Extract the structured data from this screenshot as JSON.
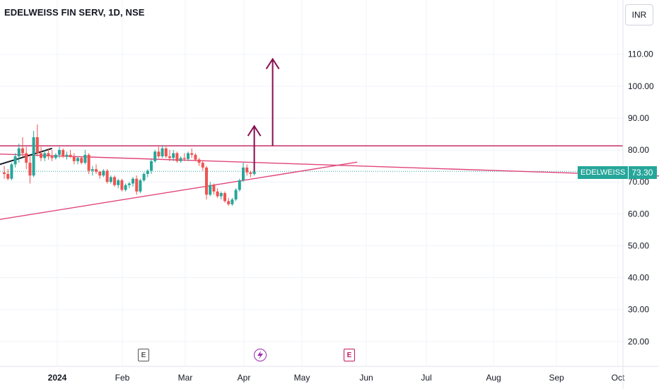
{
  "header": {
    "symbol_title": "EDELWEISS FIN SERV, 1D, NSE",
    "currency": "INR"
  },
  "price_tag": {
    "symbol": "EDELWEISS",
    "value": "73.30"
  },
  "events": {
    "earnings_label": "E",
    "split_icon": "lightning-icon"
  },
  "colors": {
    "up": "#26a69a",
    "down": "#ef5350",
    "trendline": "#e0457b",
    "resistance": "#c2185b",
    "arrow": "#880e4f",
    "last_price_line": "#26a69a"
  },
  "chart_data": {
    "type": "candlestick",
    "title": "EDELWEISS FIN SERV, 1D, NSE",
    "ylim": [
      15,
      122
    ],
    "yticks": [
      20,
      30,
      40,
      50,
      60,
      70,
      80,
      90,
      100,
      110
    ],
    "ytick_labels": [
      "20.00",
      "30.00",
      "40.00",
      "50.00",
      "60.00",
      "70.00",
      "80.00",
      "90.00",
      "100.00",
      "110.00"
    ],
    "x_labels": [
      "2024",
      "Feb",
      "Mar",
      "Apr",
      "May",
      "Jun",
      "Jul",
      "Aug",
      "Sep",
      "Oct"
    ],
    "last_price": 73.3,
    "candles": [
      {
        "o": 73,
        "h": 75,
        "l": 71,
        "c": 72.5
      },
      {
        "o": 72.5,
        "h": 74,
        "l": 70.5,
        "c": 71
      },
      {
        "o": 71,
        "h": 76,
        "l": 70.5,
        "c": 75.5
      },
      {
        "o": 75.5,
        "h": 79,
        "l": 74.5,
        "c": 78
      },
      {
        "o": 78,
        "h": 82,
        "l": 76,
        "c": 80.5
      },
      {
        "o": 80.5,
        "h": 84,
        "l": 78,
        "c": 79
      },
      {
        "o": 79,
        "h": 81,
        "l": 74,
        "c": 76
      },
      {
        "o": 76,
        "h": 78,
        "l": 69.5,
        "c": 72
      },
      {
        "o": 72,
        "h": 86,
        "l": 71.5,
        "c": 84
      },
      {
        "o": 84,
        "h": 88,
        "l": 78,
        "c": 79
      },
      {
        "o": 79,
        "h": 81,
        "l": 76.5,
        "c": 77.5
      },
      {
        "o": 77.5,
        "h": 80,
        "l": 76.5,
        "c": 79
      },
      {
        "o": 79,
        "h": 80.5,
        "l": 77,
        "c": 78
      },
      {
        "o": 78,
        "h": 80,
        "l": 76.5,
        "c": 77.5
      },
      {
        "o": 77.5,
        "h": 79,
        "l": 77,
        "c": 78.5
      },
      {
        "o": 78.5,
        "h": 81,
        "l": 77.5,
        "c": 80
      },
      {
        "o": 80,
        "h": 80.5,
        "l": 77.5,
        "c": 78
      },
      {
        "o": 78,
        "h": 79.5,
        "l": 77,
        "c": 78.5
      },
      {
        "o": 78.5,
        "h": 80,
        "l": 77.5,
        "c": 77.8
      },
      {
        "o": 77.8,
        "h": 79,
        "l": 75.5,
        "c": 76.5
      },
      {
        "o": 76.5,
        "h": 78,
        "l": 75.5,
        "c": 77.5
      },
      {
        "o": 77.5,
        "h": 78,
        "l": 75.5,
        "c": 76
      },
      {
        "o": 76,
        "h": 80,
        "l": 75.5,
        "c": 78.5
      },
      {
        "o": 78.5,
        "h": 79,
        "l": 72.5,
        "c": 73.5
      },
      {
        "o": 73.5,
        "h": 75,
        "l": 72,
        "c": 74
      },
      {
        "o": 74,
        "h": 75.5,
        "l": 72.5,
        "c": 73.2
      },
      {
        "o": 73.2,
        "h": 73.5,
        "l": 71,
        "c": 72
      },
      {
        "o": 72,
        "h": 74,
        "l": 71.5,
        "c": 73.5
      },
      {
        "o": 73.5,
        "h": 74,
        "l": 69.5,
        "c": 70
      },
      {
        "o": 70,
        "h": 72,
        "l": 69.5,
        "c": 71.5
      },
      {
        "o": 71.5,
        "h": 72,
        "l": 68.5,
        "c": 69
      },
      {
        "o": 69,
        "h": 71,
        "l": 68,
        "c": 70.5
      },
      {
        "o": 70.5,
        "h": 71,
        "l": 67,
        "c": 67.5
      },
      {
        "o": 67.5,
        "h": 69.5,
        "l": 67,
        "c": 69
      },
      {
        "o": 69,
        "h": 70,
        "l": 68,
        "c": 69.5
      },
      {
        "o": 69.5,
        "h": 71.5,
        "l": 68.5,
        "c": 71
      },
      {
        "o": 71,
        "h": 72,
        "l": 66,
        "c": 67
      },
      {
        "o": 67,
        "h": 71,
        "l": 66.5,
        "c": 70.5
      },
      {
        "o": 70.5,
        "h": 73,
        "l": 70,
        "c": 72.5
      },
      {
        "o": 72.5,
        "h": 74,
        "l": 71.5,
        "c": 73.5
      },
      {
        "o": 73.5,
        "h": 77,
        "l": 72.5,
        "c": 76.5
      },
      {
        "o": 76.5,
        "h": 80,
        "l": 76,
        "c": 79.5
      },
      {
        "o": 79.5,
        "h": 81,
        "l": 77.5,
        "c": 78
      },
      {
        "o": 78,
        "h": 81.5,
        "l": 77.5,
        "c": 80.5
      },
      {
        "o": 80.5,
        "h": 81,
        "l": 77.5,
        "c": 78
      },
      {
        "o": 78,
        "h": 80,
        "l": 76.5,
        "c": 77.5
      },
      {
        "o": 77.5,
        "h": 80,
        "l": 76.5,
        "c": 79
      },
      {
        "o": 79,
        "h": 79.5,
        "l": 76,
        "c": 76.5
      },
      {
        "o": 76.5,
        "h": 78,
        "l": 76,
        "c": 77.5
      },
      {
        "o": 77.5,
        "h": 79,
        "l": 76.5,
        "c": 77.2
      },
      {
        "o": 77.2,
        "h": 79.5,
        "l": 76.5,
        "c": 79
      },
      {
        "o": 79,
        "h": 80.5,
        "l": 77.5,
        "c": 78.5
      },
      {
        "o": 78.5,
        "h": 79,
        "l": 76.5,
        "c": 77
      },
      {
        "o": 77,
        "h": 77.5,
        "l": 75,
        "c": 76
      },
      {
        "o": 76,
        "h": 76.5,
        "l": 73.5,
        "c": 74.5
      },
      {
        "o": 74.5,
        "h": 75,
        "l": 64.5,
        "c": 66
      },
      {
        "o": 66,
        "h": 70,
        "l": 65.5,
        "c": 69
      },
      {
        "o": 69,
        "h": 69.5,
        "l": 66,
        "c": 67
      },
      {
        "o": 67,
        "h": 68,
        "l": 65,
        "c": 65.5
      },
      {
        "o": 65.5,
        "h": 67,
        "l": 64.5,
        "c": 66.5
      },
      {
        "o": 66.5,
        "h": 67,
        "l": 63.5,
        "c": 64
      },
      {
        "o": 64,
        "h": 65,
        "l": 62.5,
        "c": 63
      },
      {
        "o": 63,
        "h": 65,
        "l": 62.5,
        "c": 64.5
      },
      {
        "o": 64.5,
        "h": 68,
        "l": 64,
        "c": 67.5
      },
      {
        "o": 67.5,
        "h": 71,
        "l": 67,
        "c": 70.5
      },
      {
        "o": 70.5,
        "h": 76,
        "l": 70,
        "c": 74.5
      },
      {
        "o": 74.5,
        "h": 75.5,
        "l": 72,
        "c": 73
      },
      {
        "o": 73,
        "h": 73.5,
        "l": 71.5,
        "c": 72.5
      },
      {
        "o": 72.5,
        "h": 75,
        "l": 72,
        "c": 73.3
      }
    ],
    "drawings": {
      "resistance_level": 81.3,
      "upper_trendline": [
        {
          "bar": -8,
          "price": 79
        },
        {
          "bar": 206,
          "price": 70.8
        }
      ],
      "lower_trendline": [
        {
          "bar": -8,
          "price": 57
        },
        {
          "bar": 96,
          "price": 76.2
        }
      ],
      "left_segment": [
        {
          "bar": -4,
          "price": 74.5
        },
        {
          "bar": 13,
          "price": 80.5
        }
      ],
      "arrow_short": {
        "bar": 68,
        "from": 73.3,
        "to": 87.5
      },
      "arrow_tall": {
        "bar": 73,
        "from": 81.3,
        "to": 108.5
      }
    }
  }
}
